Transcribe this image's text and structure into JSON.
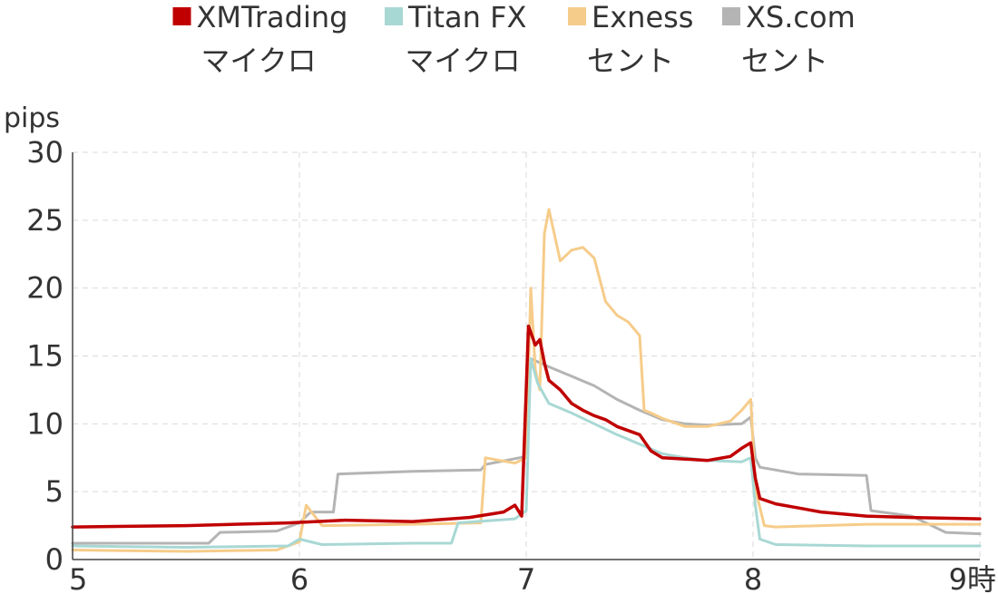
{
  "chart_data": {
    "type": "line",
    "ylabel": "pips",
    "ylim": [
      0,
      30
    ],
    "xlim": [
      5,
      9
    ],
    "x_ticks": [
      "5",
      "6",
      "7",
      "8",
      "9時"
    ],
    "y_ticks": [
      "0",
      "5",
      "10",
      "15",
      "20",
      "25",
      "30"
    ],
    "grid": true,
    "legend_position": "top",
    "series": [
      {
        "name": "XMTrading",
        "name_line2": "マイクロ",
        "color": "#c00000",
        "x": [
          5.0,
          5.5,
          5.95,
          6.2,
          6.5,
          6.75,
          6.9,
          6.95,
          6.98,
          7.01,
          7.04,
          7.06,
          7.08,
          7.1,
          7.15,
          7.2,
          7.25,
          7.3,
          7.35,
          7.4,
          7.45,
          7.5,
          7.55,
          7.6,
          7.7,
          7.8,
          7.9,
          7.95,
          7.99,
          8.01,
          8.03,
          8.1,
          8.3,
          8.5,
          8.7,
          9.0
        ],
        "y": [
          2.4,
          2.5,
          2.7,
          2.9,
          2.8,
          3.1,
          3.5,
          4.0,
          3.2,
          17.2,
          15.8,
          16.2,
          14.5,
          13.2,
          12.5,
          11.5,
          11.0,
          10.6,
          10.3,
          9.8,
          9.5,
          9.2,
          8.0,
          7.5,
          7.4,
          7.3,
          7.6,
          8.2,
          8.6,
          6.0,
          4.5,
          4.1,
          3.5,
          3.2,
          3.1,
          3.0
        ]
      },
      {
        "name": "Titan FX",
        "name_line2": "マイクロ",
        "color": "#a8d8d4",
        "x": [
          5.0,
          5.5,
          5.95,
          6.0,
          6.1,
          6.5,
          6.67,
          6.7,
          6.95,
          7.0,
          7.02,
          7.05,
          7.1,
          7.2,
          7.3,
          7.4,
          7.5,
          7.6,
          7.7,
          7.8,
          7.95,
          7.99,
          8.01,
          8.03,
          8.1,
          8.5,
          9.0
        ],
        "y": [
          1.0,
          0.9,
          1.0,
          1.5,
          1.1,
          1.2,
          1.2,
          2.7,
          3.0,
          3.6,
          14.8,
          13.0,
          11.5,
          10.8,
          10.0,
          9.2,
          8.5,
          7.8,
          7.5,
          7.3,
          7.2,
          7.5,
          4.0,
          1.5,
          1.1,
          1.0,
          1.0
        ]
      },
      {
        "name": "Exness",
        "name_line2": "セント",
        "color": "#f6cc8a",
        "x": [
          5.0,
          5.5,
          5.9,
          6.0,
          6.03,
          6.1,
          6.5,
          6.8,
          6.82,
          6.95,
          7.0,
          7.02,
          7.04,
          7.06,
          7.08,
          7.1,
          7.15,
          7.2,
          7.25,
          7.3,
          7.35,
          7.4,
          7.45,
          7.5,
          7.52,
          7.55,
          7.6,
          7.7,
          7.8,
          7.9,
          7.95,
          7.99,
          8.01,
          8.05,
          8.1,
          8.3,
          8.5,
          9.0
        ],
        "y": [
          0.7,
          0.6,
          0.7,
          1.3,
          4.0,
          2.5,
          2.6,
          2.7,
          7.5,
          7.1,
          7.5,
          20.0,
          14.0,
          12.5,
          24.0,
          25.8,
          22.0,
          22.8,
          23.0,
          22.2,
          19.0,
          18.0,
          17.5,
          16.5,
          11.0,
          10.8,
          10.4,
          9.8,
          9.8,
          10.2,
          11.0,
          11.8,
          5.2,
          2.5,
          2.4,
          2.5,
          2.6,
          2.6
        ]
      },
      {
        "name": "XS.com",
        "name_line2": "セント",
        "color": "#b4b4b4",
        "x": [
          5.0,
          5.6,
          5.65,
          5.9,
          6.0,
          6.05,
          6.15,
          6.17,
          6.5,
          6.8,
          6.82,
          6.97,
          7.0,
          7.02,
          7.1,
          7.2,
          7.3,
          7.4,
          7.5,
          7.6,
          7.7,
          7.8,
          7.95,
          7.99,
          8.01,
          8.03,
          8.2,
          8.5,
          8.52,
          8.7,
          8.85,
          9.0
        ],
        "y": [
          1.2,
          1.2,
          2.0,
          2.1,
          2.7,
          3.5,
          3.5,
          6.3,
          6.5,
          6.6,
          7.0,
          7.5,
          7.6,
          14.8,
          14.2,
          13.5,
          12.8,
          11.8,
          11.0,
          10.3,
          10.0,
          9.9,
          10.0,
          10.5,
          7.5,
          6.8,
          6.3,
          6.2,
          3.6,
          3.2,
          2.0,
          1.9
        ]
      }
    ]
  }
}
